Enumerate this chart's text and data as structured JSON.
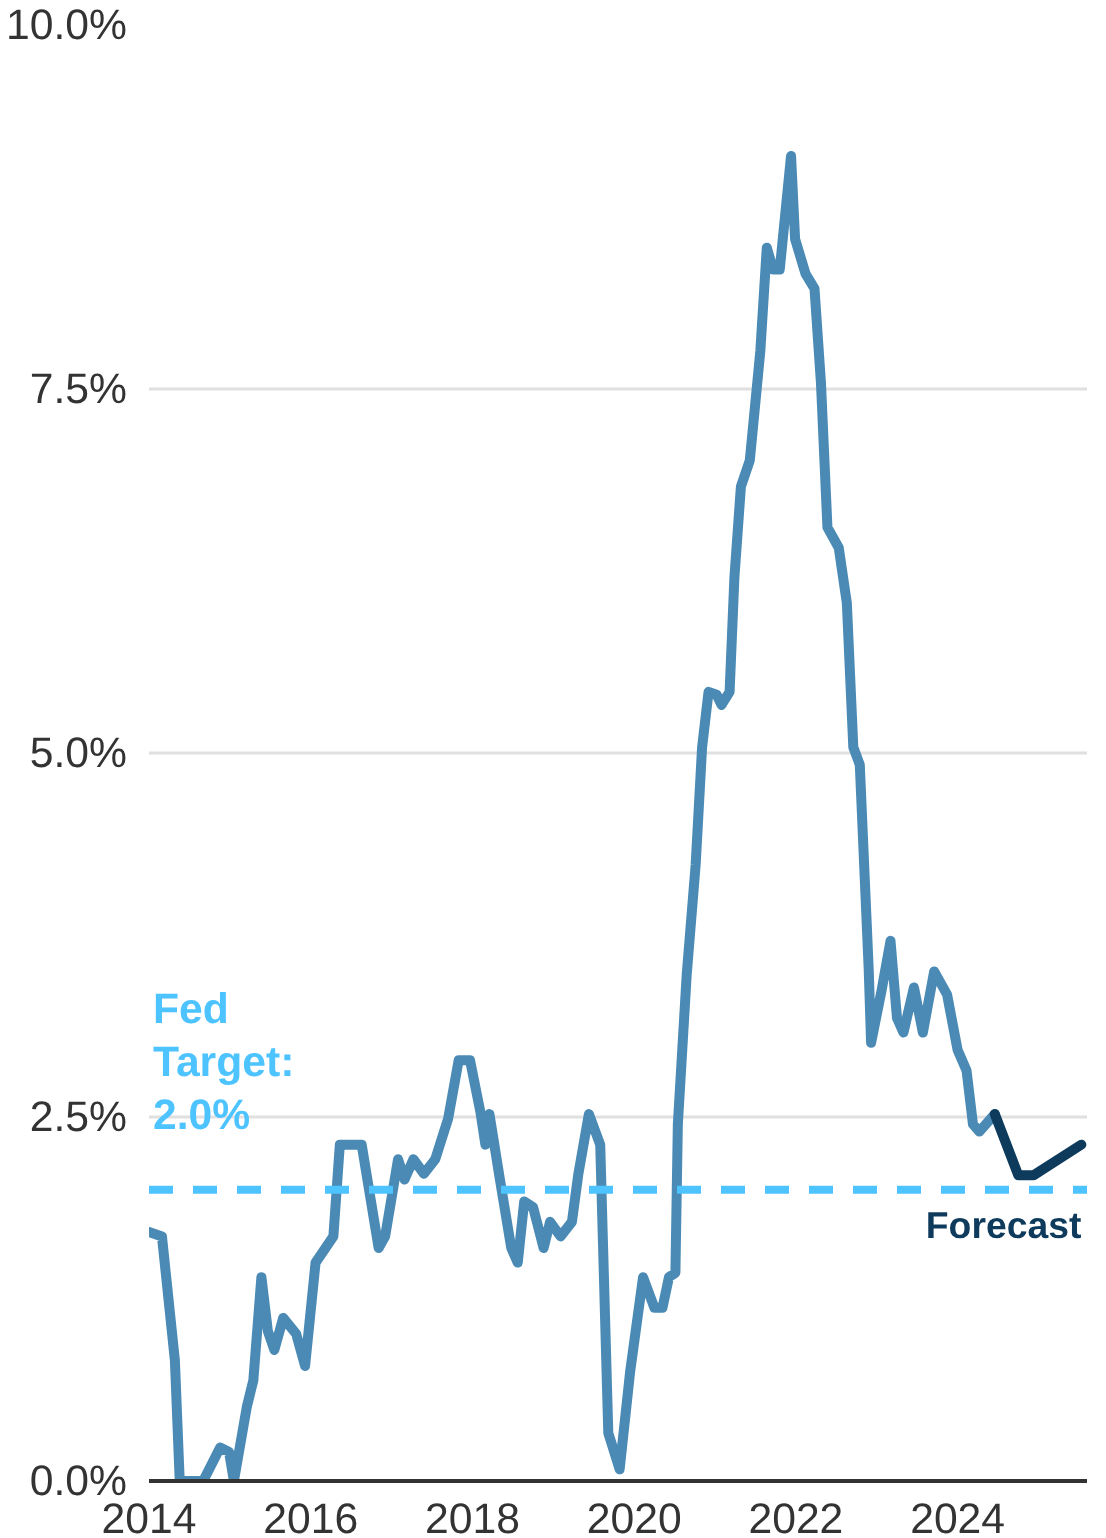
{
  "chart_data": {
    "type": "line",
    "xlim": [
      2014,
      2025.6
    ],
    "xticks": [
      2014,
      2016,
      2018,
      2020,
      2022,
      2024
    ],
    "ylim": [
      0,
      10
    ],
    "yticks": [
      {
        "value": 0,
        "label": "0.0%"
      },
      {
        "value": 2.5,
        "label": "2.5%"
      },
      {
        "value": 5,
        "label": "5.0%"
      },
      {
        "value": 7.5,
        "label": "7.5%"
      },
      {
        "value": 10,
        "label": "10.0%"
      }
    ],
    "grid": "y",
    "legend": false,
    "line_style": "solid",
    "marker": "none",
    "series": [
      {
        "color": "#4a8ab5",
        "x": [
          2014.0,
          2014.16,
          2014.32,
          2014.38,
          2014.67,
          2014.88,
          2014.99,
          2015.05,
          2015.21,
          2015.29,
          2015.39,
          2015.47,
          2015.55,
          2015.66,
          2015.82,
          2015.93,
          2016.06,
          2016.28,
          2016.36,
          2016.63,
          2016.84,
          2016.92,
          2017.08,
          2017.16,
          2017.27,
          2017.4,
          2017.54,
          2017.7,
          2017.83,
          2017.97,
          2018.1,
          2018.16,
          2018.21,
          2018.34,
          2018.48,
          2018.56,
          2018.64,
          2018.75,
          2018.88,
          2018.96,
          2019.09,
          2019.23,
          2019.31,
          2019.44,
          2019.58,
          2019.68,
          2019.82,
          2019.95,
          2020.11,
          2020.25,
          2020.35,
          2020.43,
          2020.51,
          2020.54,
          2020.65,
          2020.76,
          2020.84,
          2020.92,
          2021.02,
          2021.08,
          2021.18,
          2021.24,
          2021.32,
          2021.43,
          2021.56,
          2021.64,
          2021.72,
          2021.8,
          2021.94,
          2021.99,
          2022.12,
          2022.23,
          2022.31,
          2022.39,
          2022.53,
          2022.63,
          2022.71,
          2022.79,
          2022.9,
          2022.93,
          2023.06,
          2023.17,
          2023.25,
          2023.33,
          2023.46,
          2023.57,
          2023.71,
          2023.87,
          2024.0,
          2024.11,
          2024.19,
          2024.27,
          2024.46
        ],
        "values": [
          1.71,
          1.68,
          0.83,
          0,
          0,
          0.23,
          0.2,
          0,
          0.51,
          0.69,
          1.4,
          1.03,
          0.9,
          1.12,
          1.01,
          0.79,
          1.5,
          1.68,
          2.31,
          2.31,
          1.6,
          1.68,
          2.21,
          2.07,
          2.21,
          2.11,
          2.21,
          2.49,
          2.89,
          2.89,
          2.53,
          2.31,
          2.52,
          2.07,
          1.6,
          1.5,
          1.92,
          1.88,
          1.6,
          1.78,
          1.68,
          1.78,
          2.11,
          2.52,
          2.31,
          0.33,
          0.08,
          0.75,
          1.4,
          1.19,
          1.19,
          1.4,
          1.43,
          2.45,
          3.48,
          4.23,
          5.04,
          5.42,
          5.4,
          5.33,
          5.42,
          6.21,
          6.83,
          7.01,
          7.76,
          8.47,
          8.32,
          8.32,
          9.1,
          8.53,
          8.29,
          8.19,
          7.54,
          6.55,
          6.41,
          6.03,
          5.04,
          4.92,
          3.52,
          3.01,
          3.37,
          3.71,
          3.18,
          3.08,
          3.39,
          3.08,
          3.5,
          3.34,
          2.96,
          2.82,
          2.45,
          2.4,
          2.52
        ]
      },
      {
        "name": "Forecast",
        "color": "#0e3a5c",
        "x": [
          2024.46,
          2024.75,
          2024.94,
          2025.53
        ],
        "values": [
          2.52,
          2.1,
          2.1,
          2.31
        ]
      }
    ],
    "ref_lines": [
      {
        "axis": "y",
        "value": 2.0,
        "label": "Fed Target: 2.0%",
        "color": "#4dc3ff",
        "line_style": "dashed"
      }
    ]
  }
}
